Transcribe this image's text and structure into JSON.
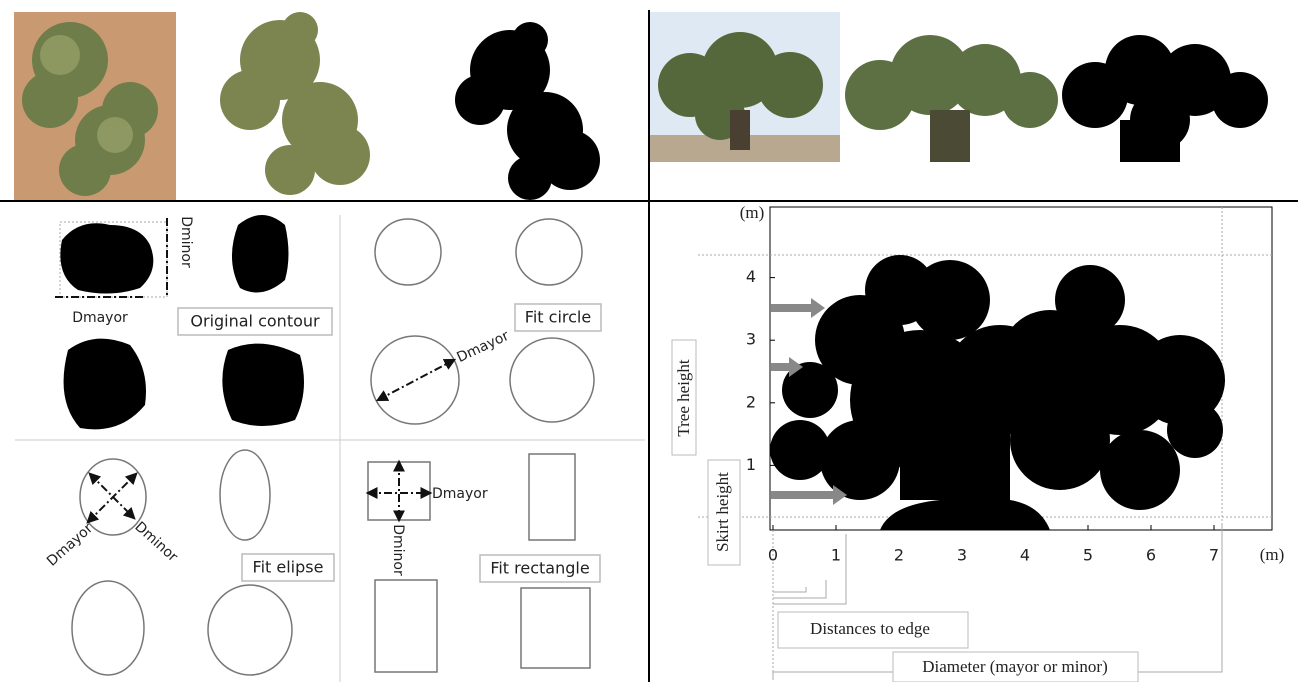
{
  "diagrams": {
    "contour": {
      "dmajor": "Dmayor",
      "dminor": "Dminor",
      "label": "Original contour"
    },
    "circle": {
      "dmajor": "Dmayor",
      "label": "Fit circle"
    },
    "ellipse": {
      "dmajor": "Dmayor",
      "dminor": "Dminor",
      "label": "Fit elipse"
    },
    "rectangle": {
      "dmajor": "Dmayor",
      "dminor": "Dminor",
      "label": "Fit rectangle"
    }
  },
  "plot": {
    "y_unit": "(m)",
    "x_unit": "(m)",
    "xticks": [
      0,
      1,
      2,
      3,
      4,
      5,
      6,
      7
    ],
    "yticks": [
      1,
      2,
      3,
      4
    ],
    "tree_height": "Tree height",
    "skirt_height": "Skirt height",
    "distances": "Distances to edge",
    "diameter": "Diameter (mayor or minor)"
  }
}
